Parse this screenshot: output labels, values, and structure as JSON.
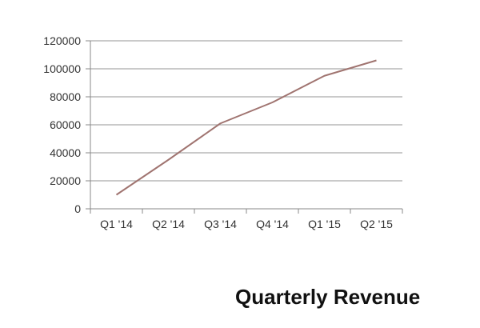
{
  "chart_data": {
    "type": "line",
    "title": "Quarterly Revenue",
    "xlabel": "",
    "ylabel": "",
    "categories": [
      "Q1 '14",
      "Q2 '14",
      "Q3 '14",
      "Q4 '14",
      "Q1 '15",
      "Q2 '15"
    ],
    "series": [
      {
        "values": [
          10000,
          35000,
          61000,
          76000,
          95000,
          106000
        ]
      }
    ],
    "ylim": [
      0,
      120000
    ],
    "yticks": [
      0,
      20000,
      40000,
      60000,
      80000,
      100000,
      120000
    ],
    "grid": true,
    "legend": "none",
    "colors": {
      "line": "#a07470",
      "grid": "#aaaaaa",
      "axis": "#888888"
    }
  }
}
